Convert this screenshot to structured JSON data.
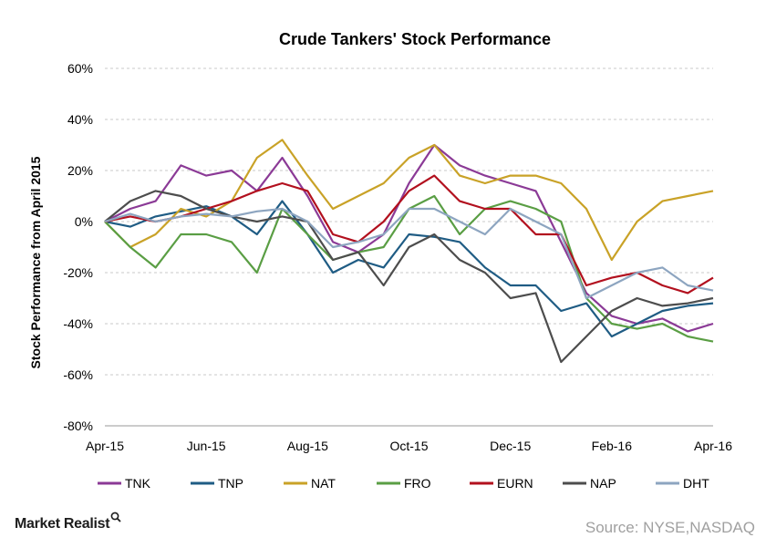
{
  "chart_data": {
    "type": "line",
    "title": "Crude  Tankers' Stock Performance",
    "ylabel": "Stock Performance from April 2015",
    "xlabel": "",
    "ylim": [
      -80,
      60
    ],
    "yticks": [
      60,
      40,
      20,
      0,
      -20,
      -40,
      -60,
      -80
    ],
    "ytick_labels": [
      "60%",
      "40%",
      "20%",
      "0%",
      "-20%",
      "-40%",
      "-60%",
      "-80%"
    ],
    "xticks": [
      0,
      2,
      4,
      6,
      8,
      10,
      12
    ],
    "xtick_labels": [
      "Apr-15",
      "Jun-15",
      "Aug-15",
      "Oct-15",
      "Dec-15",
      "Feb-16",
      "Apr-16"
    ],
    "x_unit": "months since April 2015",
    "grid": "horizontal dashed",
    "legend_position": "bottom",
    "series": [
      {
        "name": "TNK",
        "color": "#8b3a96",
        "x": [
          0,
          0.5,
          1,
          1.5,
          2,
          2.5,
          3,
          3.5,
          4,
          4.5,
          5,
          5.5,
          6,
          6.5,
          7,
          7.5,
          8,
          8.5,
          9,
          9.5,
          10,
          10.5,
          11,
          11.5,
          12
        ],
        "values": [
          0,
          5,
          8,
          22,
          18,
          20,
          12,
          25,
          10,
          -8,
          -12,
          -5,
          15,
          30,
          22,
          18,
          15,
          12,
          -8,
          -28,
          -37,
          -40,
          -38,
          -43,
          -40
        ]
      },
      {
        "name": "TNP",
        "color": "#1f5c84",
        "x": [
          0,
          0.5,
          1,
          1.5,
          2,
          2.5,
          3,
          3.5,
          4,
          4.5,
          5,
          5.5,
          6,
          6.5,
          7,
          7.5,
          8,
          8.5,
          9,
          9.5,
          10,
          10.5,
          11,
          11.5,
          12
        ],
        "values": [
          0,
          -2,
          2,
          4,
          6,
          2,
          -5,
          8,
          -5,
          -20,
          -15,
          -18,
          -5,
          -6,
          -8,
          -18,
          -25,
          -25,
          -35,
          -32,
          -45,
          -40,
          -35,
          -33,
          -32
        ]
      },
      {
        "name": "NAT",
        "color": "#c9a227",
        "x": [
          0,
          0.5,
          1,
          1.5,
          2,
          2.5,
          3,
          3.5,
          4,
          4.5,
          5,
          5.5,
          6,
          6.5,
          7,
          7.5,
          8,
          8.5,
          9,
          9.5,
          10,
          10.5,
          11,
          11.5,
          12
        ],
        "values": [
          0,
          -10,
          -5,
          5,
          2,
          8,
          25,
          32,
          18,
          5,
          10,
          15,
          25,
          30,
          18,
          15,
          18,
          18,
          15,
          5,
          -15,
          0,
          8,
          10,
          12
        ]
      },
      {
        "name": "FRO",
        "color": "#5a9e44",
        "x": [
          0,
          0.5,
          1,
          1.5,
          2,
          2.5,
          3,
          3.5,
          4,
          4.5,
          5,
          5.5,
          6,
          6.5,
          7,
          7.5,
          8,
          8.5,
          9,
          9.5,
          10,
          10.5,
          11,
          11.5,
          12
        ],
        "values": [
          0,
          -10,
          -18,
          -5,
          -5,
          -8,
          -20,
          5,
          -5,
          -15,
          -12,
          -10,
          5,
          10,
          -5,
          5,
          8,
          5,
          0,
          -30,
          -40,
          -42,
          -40,
          -45,
          -47
        ]
      },
      {
        "name": "EURN",
        "color": "#b2101e",
        "x": [
          0,
          0.5,
          1,
          1.5,
          2,
          2.5,
          3,
          3.5,
          4,
          4.5,
          5,
          5.5,
          6,
          6.5,
          7,
          7.5,
          8,
          8.5,
          9,
          9.5,
          10,
          10.5,
          11,
          11.5,
          12
        ],
        "values": [
          0,
          2,
          0,
          2,
          5,
          8,
          12,
          15,
          12,
          -5,
          -8,
          0,
          12,
          18,
          8,
          5,
          5,
          -5,
          -5,
          -25,
          -22,
          -20,
          -25,
          -28,
          -22
        ]
      },
      {
        "name": "NAP",
        "color": "#4d4d4d",
        "x": [
          0,
          0.5,
          1,
          1.5,
          2,
          2.5,
          3,
          3.5,
          4,
          4.5,
          5,
          5.5,
          6,
          6.5,
          7,
          7.5,
          8,
          8.5,
          9,
          9.5,
          10,
          10.5,
          11,
          11.5,
          12
        ],
        "values": [
          0,
          8,
          12,
          10,
          5,
          2,
          0,
          2,
          0,
          -15,
          -12,
          -25,
          -10,
          -5,
          -15,
          -20,
          -30,
          -28,
          -55,
          -45,
          -35,
          -30,
          -33,
          -32,
          -30
        ]
      },
      {
        "name": "DHT",
        "color": "#8da5c0",
        "x": [
          0,
          0.5,
          1,
          1.5,
          2,
          2.5,
          3,
          3.5,
          4,
          4.5,
          5,
          5.5,
          6,
          6.5,
          7,
          7.5,
          8,
          8.5,
          9,
          9.5,
          10,
          10.5,
          11,
          11.5,
          12
        ],
        "values": [
          0,
          3,
          0,
          2,
          3,
          2,
          4,
          5,
          0,
          -10,
          -8,
          -5,
          5,
          5,
          0,
          -5,
          5,
          0,
          -5,
          -30,
          -25,
          -20,
          -18,
          -25,
          -27
        ]
      }
    ]
  },
  "brand": {
    "name": "Market Realist",
    "icon": "magnifier-icon"
  },
  "source": "Source: NYSE,NASDAQ"
}
